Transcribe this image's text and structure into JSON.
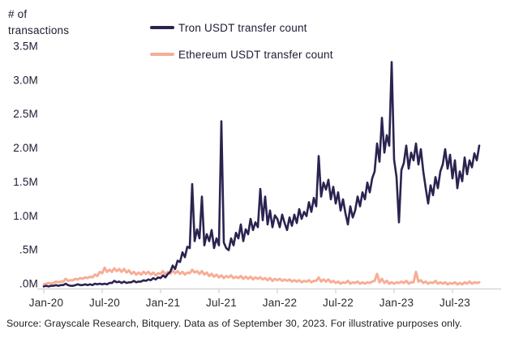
{
  "y_axis_title": {
    "line1": "# of",
    "line2": "transactions"
  },
  "legend": [
    {
      "label": "Tron USDT transfer count",
      "color": "#2b2350"
    },
    {
      "label": "Ethereum USDT transfer count",
      "color": "#f7ad96"
    }
  ],
  "source_note": "Source: Grayscale Research, Bitquery. Data as of September 30, 2023. For illustrative purposes only.",
  "colors": {
    "tron_line": "#2b2350",
    "ethereum_line": "#f7ad96",
    "axis": "#c9c9c9",
    "text": "#1c1b33",
    "background": "#ffffff"
  },
  "chart_data": {
    "type": "line",
    "title": "",
    "ylabel": "# of transactions",
    "xlabel": "",
    "grid": false,
    "legend_position": "top",
    "ylim": [
      0,
      3.5
    ],
    "y_tick_labels": [
      "3.5M",
      "3.0M",
      "2.5M",
      "2.0M",
      "1.5M",
      "1.0M",
      ".5M",
      ".0M"
    ],
    "y_tick_values": [
      3.5,
      3.0,
      2.5,
      2.0,
      1.5,
      1.0,
      0.5,
      0.0
    ],
    "x_tick_labels": [
      "Jan-20",
      "Jul-20",
      "Jan-21",
      "Jul-21",
      "Jan-22",
      "Jul-22",
      "Jan-23",
      "Jul-23"
    ],
    "x_range_note": "Daily data Jan 2020 through Sep 30 2023; values below are millions of transactions, sampled 4 points per month",
    "points_per_month": 4,
    "series": [
      {
        "name": "Tron USDT transfer count",
        "color": "#2b2350",
        "values": [
          0.03,
          0.04,
          0.03,
          0.04,
          0.04,
          0.05,
          0.04,
          0.05,
          0.05,
          0.07,
          0.05,
          0.04,
          0.04,
          0.05,
          0.06,
          0.05,
          0.05,
          0.06,
          0.05,
          0.06,
          0.05,
          0.07,
          0.06,
          0.07,
          0.06,
          0.07,
          0.06,
          0.08,
          0.08,
          0.11,
          0.09,
          0.1,
          0.08,
          0.1,
          0.08,
          0.09,
          0.09,
          0.11,
          0.09,
          0.1,
          0.1,
          0.12,
          0.11,
          0.13,
          0.12,
          0.15,
          0.13,
          0.16,
          0.15,
          0.19,
          0.16,
          0.21,
          0.24,
          0.33,
          0.28,
          0.4,
          0.38,
          0.52,
          0.45,
          0.6,
          0.58,
          1.5,
          0.68,
          0.85,
          0.72,
          1.32,
          0.62,
          0.78,
          0.68,
          0.84,
          0.58,
          0.72,
          0.62,
          2.4,
          0.66,
          0.58,
          0.55,
          0.72,
          0.62,
          0.8,
          0.72,
          0.92,
          0.68,
          0.85,
          0.78,
          1.0,
          0.84,
          0.95,
          0.88,
          1.43,
          0.98,
          1.32,
          0.92,
          1.12,
          0.88,
          1.05,
          1.0,
          0.88,
          1.06,
          0.94,
          0.84,
          1.02,
          0.9,
          1.06,
          0.94,
          1.14,
          1.0,
          1.1,
          1.04,
          1.24,
          1.1,
          1.3,
          1.18,
          1.9,
          1.32,
          1.52,
          1.42,
          1.56,
          1.28,
          1.46,
          1.22,
          1.38,
          1.12,
          1.28,
          1.08,
          0.92,
          1.18,
          1.02,
          1.12,
          1.32,
          1.18,
          1.38,
          1.28,
          1.52,
          1.38,
          1.58,
          1.68,
          2.08,
          1.82,
          2.45,
          1.95,
          2.2,
          2.05,
          3.25,
          1.85,
          1.6,
          0.95,
          1.7,
          1.8,
          2.05,
          1.72,
          1.95,
          1.84,
          2.08,
          1.78,
          2.0,
          1.68,
          1.44,
          1.22,
          1.48,
          1.34,
          1.6,
          1.44,
          1.68,
          1.78,
          2.0,
          1.72,
          1.92,
          1.58,
          1.84,
          1.44,
          1.68,
          1.54,
          1.88,
          1.64,
          1.84,
          1.74,
          1.94,
          1.84,
          2.05
        ]
      },
      {
        "name": "Ethereum USDT transfer count",
        "color": "#f7ad96",
        "values": [
          0.06,
          0.07,
          0.08,
          0.07,
          0.08,
          0.1,
          0.09,
          0.1,
          0.1,
          0.14,
          0.11,
          0.12,
          0.12,
          0.14,
          0.13,
          0.15,
          0.14,
          0.16,
          0.15,
          0.17,
          0.16,
          0.2,
          0.18,
          0.24,
          0.22,
          0.3,
          0.24,
          0.27,
          0.24,
          0.29,
          0.25,
          0.28,
          0.24,
          0.28,
          0.23,
          0.26,
          0.21,
          0.24,
          0.2,
          0.23,
          0.2,
          0.24,
          0.21,
          0.24,
          0.2,
          0.23,
          0.19,
          0.22,
          0.21,
          0.25,
          0.2,
          0.24,
          0.21,
          0.26,
          0.22,
          0.25,
          0.21,
          0.24,
          0.2,
          0.23,
          0.22,
          0.27,
          0.23,
          0.25,
          0.21,
          0.25,
          0.2,
          0.23,
          0.18,
          0.21,
          0.17,
          0.2,
          0.16,
          0.19,
          0.15,
          0.18,
          0.16,
          0.19,
          0.15,
          0.17,
          0.15,
          0.18,
          0.14,
          0.17,
          0.14,
          0.17,
          0.13,
          0.16,
          0.14,
          0.16,
          0.13,
          0.15,
          0.12,
          0.15,
          0.11,
          0.14,
          0.12,
          0.14,
          0.11,
          0.13,
          0.11,
          0.13,
          0.1,
          0.12,
          0.1,
          0.12,
          0.09,
          0.11,
          0.1,
          0.12,
          0.09,
          0.11,
          0.11,
          0.16,
          0.1,
          0.13,
          0.1,
          0.13,
          0.09,
          0.11,
          0.08,
          0.1,
          0.07,
          0.09,
          0.08,
          0.11,
          0.07,
          0.09,
          0.08,
          0.1,
          0.07,
          0.09,
          0.07,
          0.09,
          0.08,
          0.1,
          0.11,
          0.21,
          0.09,
          0.14,
          0.08,
          0.11,
          0.07,
          0.09,
          0.07,
          0.09,
          0.08,
          0.1,
          0.08,
          0.11,
          0.07,
          0.09,
          0.09,
          0.24,
          0.1,
          0.12,
          0.08,
          0.1,
          0.07,
          0.09,
          0.08,
          0.11,
          0.07,
          0.09,
          0.07,
          0.09,
          0.06,
          0.08,
          0.07,
          0.09,
          0.06,
          0.08,
          0.06,
          0.09,
          0.07,
          0.1,
          0.07,
          0.09,
          0.08,
          0.09
        ]
      }
    ]
  }
}
